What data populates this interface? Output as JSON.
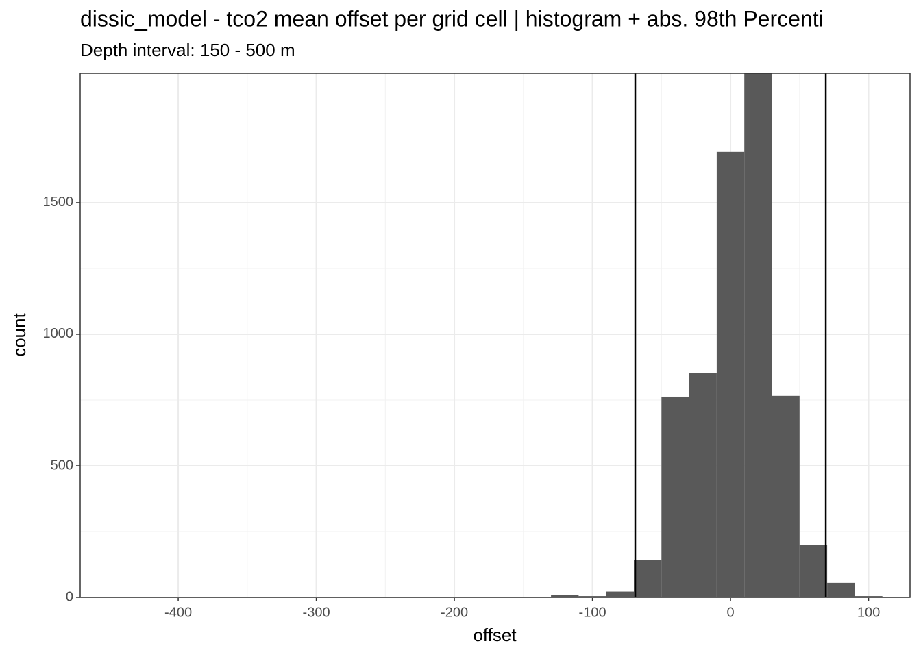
{
  "chart_data": {
    "type": "histogram",
    "title": "dissic_model  -  tco2 mean offset per grid cell | histogram + abs. 98th Percenti",
    "subtitle": "Depth interval: 150 - 500 m",
    "x_label": "offset",
    "y_label": "count",
    "bins": [
      -450,
      -430,
      -410,
      -390,
      -370,
      -350,
      -330,
      -310,
      -290,
      -270,
      -250,
      -230,
      -210,
      -190,
      -170,
      -150,
      -130,
      -110,
      -90,
      -70,
      -50,
      -30,
      -10,
      10,
      30,
      50,
      70,
      90,
      110
    ],
    "values": [
      0,
      0,
      0,
      0,
      0,
      0,
      0,
      0,
      0,
      0,
      0,
      0,
      0,
      2,
      0,
      0,
      8,
      5,
      22,
      141,
      763,
      854,
      1693,
      1992,
      766,
      198,
      55,
      5
    ],
    "color": "#595959",
    "vlines": [
      -69,
      69
    ],
    "vline_color": "#000000",
    "xlim": [
      -471,
      130
    ],
    "xticks": [
      -400,
      -300,
      -200,
      -100,
      0,
      100
    ],
    "ylim": [
      0,
      1992
    ],
    "yticks": [
      0,
      500,
      1000,
      1500
    ],
    "grid": true
  }
}
